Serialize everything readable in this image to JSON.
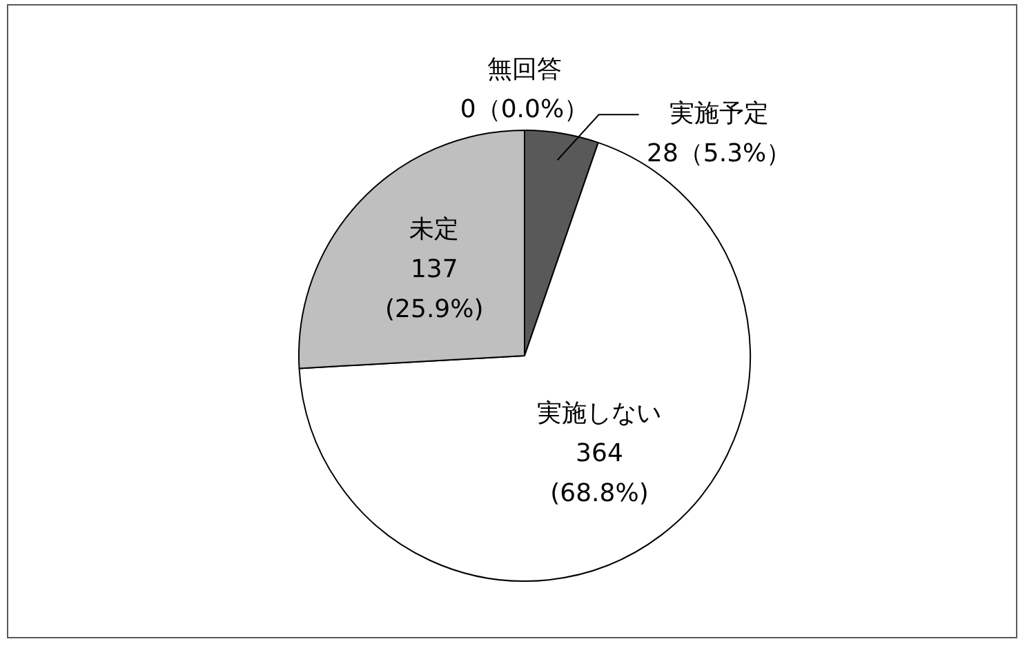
{
  "chart_data": {
    "type": "pie",
    "categories": [
      "実施予定",
      "実施しない",
      "未定",
      "無回答"
    ],
    "values": [
      28,
      364,
      137,
      0
    ],
    "colors": [
      "#595959",
      "#ffffff",
      "#bfbfbf",
      "#a6a6a6"
    ],
    "value_labels": [
      "28（5.3%）",
      "364\n(68.8%)",
      "137\n(25.9%)",
      "0（0.0%）"
    ]
  }
}
